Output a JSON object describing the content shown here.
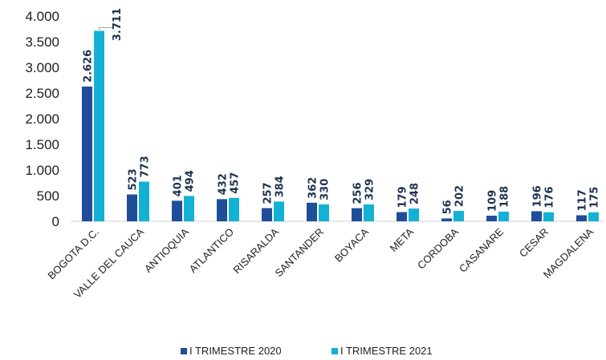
{
  "chart_data": {
    "type": "bar",
    "title": "",
    "xlabel": "",
    "ylabel": "",
    "ylim": [
      0,
      4000
    ],
    "yticks": [
      0,
      500,
      1000,
      1500,
      2000,
      2500,
      3000,
      3500,
      4000
    ],
    "ytick_labels": [
      "0",
      "500",
      "1.000",
      "1.500",
      "2.000",
      "2.500",
      "3.000",
      "3.500",
      "4.000"
    ],
    "categories": [
      "BOGOTA D.C.",
      "VALLE DEL CAUCA",
      "ANTIOQUIA",
      "ATLANTICO",
      "RISARALDA",
      "SANTANDER",
      "BOYACA",
      "META",
      "CORDOBA",
      "CASANARE",
      "CESAR",
      "MAGDALENA"
    ],
    "series": [
      {
        "name": "I TRIMESTRE 2020",
        "color": "#1f4e99",
        "values": [
          2626,
          523,
          401,
          432,
          257,
          362,
          256,
          179,
          56,
          109,
          196,
          117
        ],
        "labels": [
          "2.626",
          "523",
          "401",
          "432",
          "257",
          "362",
          "256",
          "179",
          "56",
          "109",
          "196",
          "117"
        ]
      },
      {
        "name": "I TRIMESTRE 2021",
        "color": "#13b1d4",
        "values": [
          3711,
          773,
          494,
          457,
          384,
          330,
          329,
          248,
          202,
          188,
          176,
          175
        ],
        "labels": [
          "3.711",
          "773",
          "494",
          "457",
          "384",
          "330",
          "329",
          "248",
          "202",
          "188",
          "176",
          "175"
        ]
      }
    ],
    "legend_position": "bottom",
    "grid": false
  }
}
